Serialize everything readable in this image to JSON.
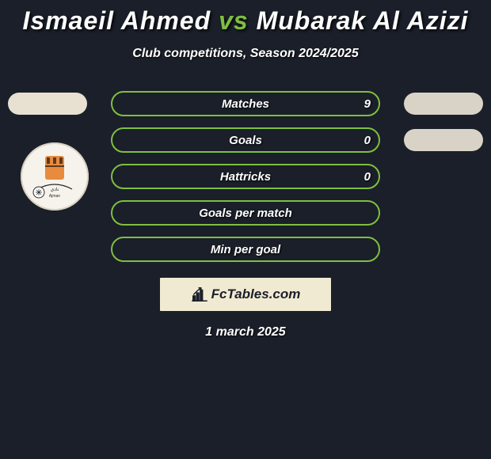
{
  "title": {
    "player1": "Ismaeil Ahmed",
    "vs": "vs",
    "player2": "Mubarak Al Azizi",
    "color_player": "#ffffff",
    "color_vs": "#7fbf3f",
    "fontsize": 32
  },
  "subtitle": "Club competitions, Season 2024/2025",
  "date": "1 march 2025",
  "colors": {
    "background": "#1a1f29",
    "bar_border": "#7fbf3f",
    "bar_fill": "transparent",
    "pill_left": "#e8e0d0",
    "pill_right": "#d9d3c7",
    "badge_bg": "#f6f3ec",
    "fctables_bg": "#f1ead2"
  },
  "stats": [
    {
      "label": "Matches",
      "value": "9",
      "show_left_pill": true,
      "show_right_pill": true,
      "show_value": true
    },
    {
      "label": "Goals",
      "value": "0",
      "show_left_pill": false,
      "show_right_pill": true,
      "show_value": true
    },
    {
      "label": "Hattricks",
      "value": "0",
      "show_left_pill": false,
      "show_right_pill": false,
      "show_value": true
    },
    {
      "label": "Goals per match",
      "value": "",
      "show_left_pill": false,
      "show_right_pill": false,
      "show_value": false
    },
    {
      "label": "Min per goal",
      "value": "",
      "show_left_pill": false,
      "show_right_pill": false,
      "show_value": false
    }
  ],
  "brand": "FcTables.com",
  "icons": {
    "chart": "chart-icon",
    "club_badge": "club-badge-icon"
  }
}
